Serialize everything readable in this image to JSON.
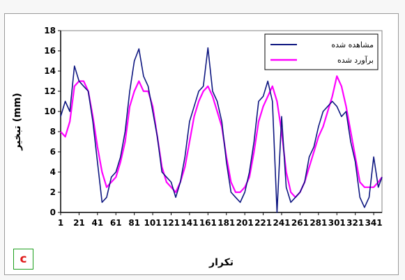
{
  "panel_label": "c",
  "colors": {
    "observed": "#0d1680",
    "estimated": "#ff00ff",
    "panel_border": "#1b9e1b",
    "panel_text": "#e01a1a"
  },
  "chart_data": {
    "type": "line",
    "title": "",
    "xlabel": "تکرار",
    "ylabel": "تبخیر (mm)",
    "xlim": [
      1,
      350
    ],
    "ylim": [
      0,
      18
    ],
    "yticks": [
      0,
      2,
      4,
      6,
      8,
      10,
      12,
      14,
      16,
      18
    ],
    "xticks": [
      1,
      21,
      41,
      61,
      81,
      101,
      121,
      141,
      161,
      181,
      201,
      221,
      241,
      261,
      281,
      301,
      321,
      341
    ],
    "grid": false,
    "legend": "top-right",
    "x": [
      1,
      6,
      11,
      16,
      21,
      26,
      31,
      36,
      41,
      46,
      51,
      56,
      61,
      66,
      71,
      76,
      81,
      86,
      91,
      96,
      101,
      106,
      111,
      116,
      121,
      126,
      131,
      136,
      141,
      146,
      151,
      156,
      161,
      166,
      171,
      176,
      181,
      186,
      191,
      196,
      201,
      206,
      211,
      216,
      221,
      226,
      231,
      236,
      241,
      246,
      251,
      256,
      261,
      266,
      271,
      276,
      281,
      286,
      291,
      296,
      301,
      306,
      311,
      316,
      321,
      326,
      331,
      336,
      341,
      346,
      350
    ],
    "series": [
      {
        "name": "مشاهده شده",
        "color": "#0d1680",
        "values": [
          9.5,
          11.0,
          10.0,
          14.5,
          13.0,
          12.5,
          12.0,
          9.0,
          5.0,
          1.0,
          1.5,
          3.5,
          4.0,
          5.5,
          8.0,
          12.0,
          15.0,
          16.2,
          13.5,
          12.5,
          10.0,
          7.5,
          4.0,
          3.5,
          3.0,
          1.5,
          3.0,
          5.5,
          9.0,
          10.5,
          12.0,
          12.5,
          16.3,
          12.0,
          11.0,
          9.0,
          5.0,
          2.0,
          1.5,
          1.0,
          2.0,
          4.0,
          7.0,
          11.0,
          11.5,
          13.0,
          11.0,
          0.0,
          9.5,
          2.5,
          1.0,
          1.5,
          2.0,
          3.0,
          5.5,
          6.5,
          8.5,
          10.0,
          10.5,
          11.0,
          10.5,
          9.5,
          10.0,
          7.0,
          5.0,
          1.5,
          0.5,
          1.5,
          5.5,
          2.5,
          3.5
        ]
      },
      {
        "name": "برآورد شده",
        "color": "#ff00ff",
        "values": [
          8.0,
          7.5,
          9.0,
          12.5,
          13.0,
          13.0,
          12.0,
          9.5,
          6.5,
          4.0,
          2.5,
          3.0,
          3.5,
          5.0,
          7.0,
          10.5,
          12.0,
          13.0,
          12.0,
          12.0,
          10.5,
          7.5,
          4.5,
          3.0,
          2.5,
          2.0,
          3.0,
          4.5,
          7.0,
          9.5,
          11.0,
          12.0,
          12.5,
          11.5,
          10.0,
          8.5,
          5.5,
          3.0,
          2.0,
          2.0,
          2.5,
          3.5,
          6.0,
          9.0,
          10.5,
          11.5,
          12.5,
          11.0,
          8.0,
          4.0,
          2.0,
          1.5,
          2.0,
          3.0,
          4.5,
          6.0,
          7.5,
          8.5,
          10.0,
          11.5,
          13.5,
          12.5,
          10.5,
          8.0,
          5.5,
          3.0,
          2.5,
          2.5,
          2.5,
          3.0,
          3.5
        ]
      }
    ]
  }
}
